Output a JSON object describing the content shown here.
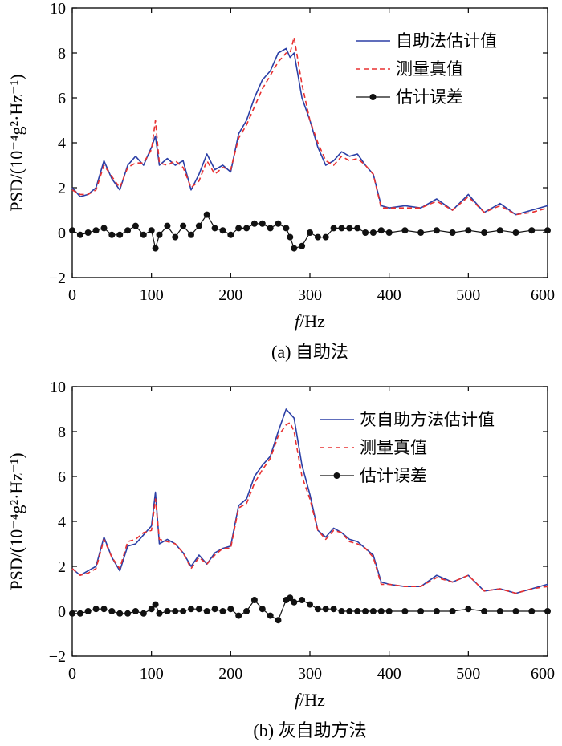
{
  "chart_data": [
    {
      "type": "line",
      "panel": "a",
      "caption": "(a) 自助法",
      "xlabel_var": "f",
      "xlabel_unit": "/Hz",
      "ylabel": "PSD/(10⁻⁴g²·Hz⁻¹)",
      "xlim": [
        0,
        600
      ],
      "ylim": [
        -2,
        10
      ],
      "xticks": [
        "0",
        "100",
        "200",
        "300",
        "400",
        "500",
        "600"
      ],
      "yticks": [
        "−2",
        "0",
        "2",
        "4",
        "6",
        "8",
        "10"
      ],
      "grid": false,
      "legend_position": "top-right",
      "x": [
        0,
        10,
        20,
        30,
        40,
        50,
        60,
        70,
        80,
        90,
        100,
        105,
        110,
        120,
        130,
        140,
        150,
        160,
        170,
        180,
        190,
        200,
        210,
        220,
        230,
        240,
        250,
        260,
        270,
        275,
        280,
        290,
        300,
        310,
        320,
        330,
        340,
        350,
        360,
        370,
        380,
        390,
        400,
        420,
        440,
        460,
        480,
        500,
        520,
        540,
        560,
        580,
        600
      ],
      "series": [
        {
          "name": "自助法估计值",
          "color": "#2b3fa6",
          "style": "solid",
          "values": [
            2.0,
            1.6,
            1.7,
            2.0,
            3.2,
            2.4,
            1.9,
            3.0,
            3.4,
            3.0,
            3.8,
            4.3,
            3.0,
            3.3,
            3.0,
            3.2,
            1.9,
            2.6,
            3.5,
            2.8,
            3.0,
            2.7,
            4.4,
            5.0,
            6.0,
            6.8,
            7.2,
            8.0,
            8.2,
            7.8,
            8.0,
            6.0,
            5.0,
            3.8,
            3.0,
            3.2,
            3.6,
            3.4,
            3.5,
            3.0,
            2.6,
            1.2,
            1.1,
            1.2,
            1.1,
            1.5,
            1.0,
            1.7,
            0.9,
            1.3,
            0.8,
            1.0,
            1.2
          ]
        },
        {
          "name": "测量真值",
          "color": "#e83030",
          "style": "dashed",
          "values": [
            1.9,
            1.7,
            1.7,
            1.9,
            3.0,
            2.5,
            2.0,
            2.9,
            3.1,
            3.1,
            3.7,
            5.0,
            3.1,
            3.0,
            3.2,
            2.9,
            2.0,
            2.3,
            3.2,
            2.6,
            2.9,
            2.8,
            4.2,
            4.8,
            5.6,
            6.4,
            7.0,
            7.6,
            8.0,
            8.0,
            8.7,
            6.6,
            5.0,
            4.0,
            3.2,
            3.0,
            3.4,
            3.2,
            3.3,
            3.0,
            2.6,
            1.1,
            1.1,
            1.1,
            1.1,
            1.4,
            1.0,
            1.6,
            0.9,
            1.2,
            0.8,
            0.9,
            1.1
          ]
        },
        {
          "name": "估计误差",
          "color": "#111111",
          "style": "line-dots",
          "values": [
            0.1,
            -0.1,
            0.0,
            0.1,
            0.2,
            -0.1,
            -0.1,
            0.1,
            0.3,
            -0.1,
            0.1,
            -0.7,
            -0.1,
            0.3,
            -0.2,
            0.3,
            -0.1,
            0.3,
            0.8,
            0.2,
            0.1,
            -0.1,
            0.2,
            0.2,
            0.4,
            0.4,
            0.2,
            0.4,
            0.2,
            -0.2,
            -0.7,
            -0.6,
            0.0,
            -0.2,
            -0.2,
            0.2,
            0.2,
            0.2,
            0.2,
            0.0,
            0.0,
            0.1,
            0.0,
            0.1,
            0.0,
            0.1,
            0.0,
            0.1,
            0.0,
            0.1,
            0.0,
            0.1,
            0.1
          ]
        }
      ]
    },
    {
      "type": "line",
      "panel": "b",
      "caption": "(b) 灰自助方法",
      "xlabel_var": "f",
      "xlabel_unit": "/Hz",
      "ylabel": "PSD/(10⁻⁴g²·Hz⁻¹)",
      "xlim": [
        0,
        600
      ],
      "ylim": [
        -2,
        10
      ],
      "xticks": [
        "0",
        "100",
        "200",
        "300",
        "400",
        "500",
        "600"
      ],
      "yticks": [
        "−2",
        "0",
        "2",
        "4",
        "6",
        "8",
        "10"
      ],
      "grid": false,
      "legend_position": "top-right",
      "x": [
        0,
        10,
        20,
        30,
        40,
        50,
        60,
        70,
        80,
        90,
        100,
        105,
        110,
        120,
        130,
        140,
        150,
        160,
        170,
        180,
        190,
        200,
        210,
        220,
        230,
        240,
        250,
        260,
        270,
        275,
        280,
        290,
        300,
        310,
        320,
        330,
        340,
        350,
        360,
        370,
        380,
        390,
        400,
        420,
        440,
        460,
        480,
        500,
        520,
        540,
        560,
        580,
        600
      ],
      "series": [
        {
          "name": "灰自助方法估计值",
          "color": "#2b3fa6",
          "style": "solid",
          "values": [
            1.9,
            1.6,
            1.8,
            2.0,
            3.3,
            2.4,
            1.8,
            2.9,
            3.0,
            3.4,
            3.8,
            5.3,
            3.0,
            3.2,
            3.0,
            2.6,
            2.0,
            2.5,
            2.1,
            2.6,
            2.8,
            2.9,
            4.7,
            5.0,
            6.0,
            6.5,
            6.9,
            8.0,
            9.0,
            8.8,
            8.6,
            6.5,
            5.2,
            3.6,
            3.3,
            3.7,
            3.5,
            3.2,
            3.1,
            2.8,
            2.5,
            1.3,
            1.2,
            1.1,
            1.1,
            1.6,
            1.3,
            1.6,
            0.9,
            1.0,
            0.8,
            1.0,
            1.2
          ]
        },
        {
          "name": "测量真值",
          "color": "#e83030",
          "style": "dashed",
          "values": [
            1.9,
            1.6,
            1.7,
            1.9,
            3.2,
            2.4,
            1.9,
            3.1,
            3.2,
            3.5,
            3.6,
            5.0,
            3.2,
            3.1,
            3.0,
            2.6,
            1.9,
            2.4,
            2.1,
            2.5,
            2.8,
            2.8,
            4.6,
            4.8,
            5.7,
            6.3,
            6.8,
            7.8,
            8.3,
            8.4,
            8.0,
            6.0,
            5.0,
            3.6,
            3.2,
            3.6,
            3.5,
            3.1,
            3.0,
            2.8,
            2.4,
            1.2,
            1.2,
            1.1,
            1.1,
            1.5,
            1.3,
            1.6,
            0.9,
            1.0,
            0.8,
            1.0,
            1.1
          ]
        },
        {
          "name": "估计误差",
          "color": "#111111",
          "style": "line-dots",
          "values": [
            -0.1,
            -0.1,
            0.0,
            0.1,
            0.1,
            0.0,
            -0.1,
            -0.1,
            0.0,
            -0.1,
            0.1,
            0.3,
            -0.1,
            0.0,
            0.0,
            0.0,
            0.1,
            0.1,
            0.0,
            0.1,
            0.0,
            0.1,
            -0.2,
            0.0,
            0.5,
            0.1,
            -0.2,
            -0.4,
            0.5,
            0.6,
            0.4,
            0.5,
            0.3,
            0.1,
            0.1,
            0.1,
            0.0,
            0.0,
            0.0,
            0.0,
            0.0,
            0.0,
            0.0,
            0.0,
            0.0,
            0.0,
            0.0,
            0.1,
            0.0,
            0.0,
            0.0,
            0.0,
            0.0
          ]
        }
      ]
    }
  ]
}
